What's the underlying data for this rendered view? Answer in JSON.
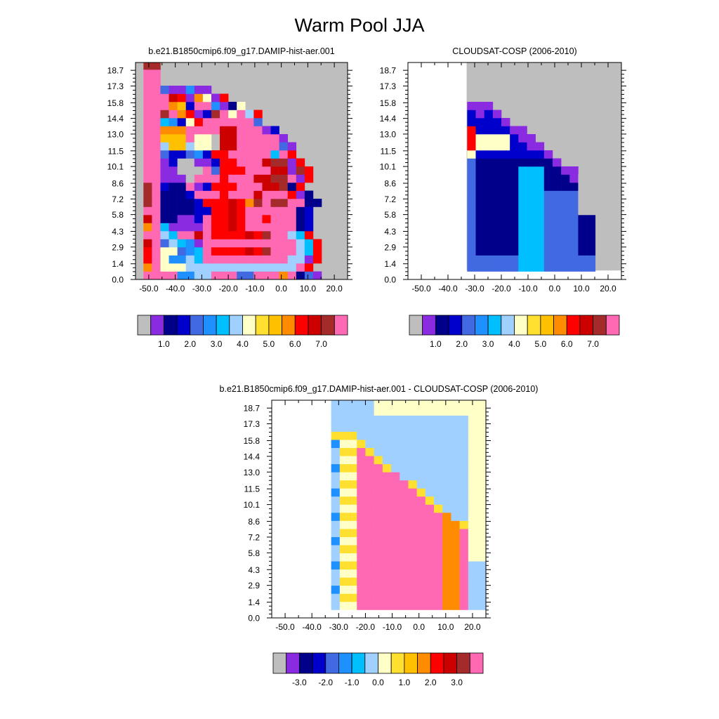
{
  "title": "Warm Pool JJA",
  "chart_data": [
    {
      "type": "heatmap",
      "title": "b.e21.B1850cmip6.f09_g17.DAMIP-hist-aer.001",
      "x_ticks": [
        "-50.0",
        "-40.0",
        "-30.0",
        "-20.0",
        "-10.0",
        "0.0",
        "10.0",
        "20.0"
      ],
      "y_ticks": [
        "0.0",
        "1.4",
        "2.9",
        "4.3",
        "5.8",
        "7.2",
        "8.6",
        "10.1",
        "11.5",
        "13.0",
        "14.4",
        "15.8",
        "17.3",
        "18.7"
      ],
      "xlim": [
        -55,
        25
      ],
      "ylim": [
        0,
        19.4
      ],
      "colorbar": {
        "colors": [
          "#bebebe",
          "#8a2be2",
          "#00008b",
          "#0000cd",
          "#4169e1",
          "#1e90ff",
          "#00bfff",
          "#a0d0ff",
          "#ffffc8",
          "#ffe030",
          "#ffc000",
          "#ff8c00",
          "#ff0000",
          "#cd0000",
          "#a52a2a",
          "#ff69b4"
        ],
        "labels": [
          "1.0",
          "2.0",
          "3.0",
          "4.0",
          "5.0",
          "6.0",
          "7.0"
        ]
      },
      "grid": {
        "x0": -52,
        "dx": 3.2,
        "y0": 0,
        "dy": 0.722,
        "rows": [
          "ppppffhhpppeeppplpceb",
          "lpiiihhhhhhhhhhhhhpm",
          "mpiffhgpppppppppphhbm",
          "mpiiefgpmmmmnmoppphgm",
          "npehgfbppppppppppphgm",
          "pphgppnpmmmmnmopphgm",
          "lpgbbbbpmmnmppppppcd",
          "npccbbdpmmnmppmpppcd",
          "ppccccddmmnmppppppcd",
          "opccccdmmmnmlopooppcc",
          "opcccdpppmpppnpppmbc",
          "opdccpbdmmmpppnnocm",
          "ppbbbapppmpppnnoopbm",
          "ppbbaaapemmmpppnnbom",
          "ppbdaabbdmmpppnoobm",
          "ppeddefdmmpppppgpm",
          "pphkkhiitnnpppppeb",
          "ppkkkpiitnnpppppb",
          "pplllppppnnpppbd",
          "ppgfdimppppppe",
          "ppoplmbdopiphm",
          "ppplkdppfbci",
          "pppnmblibm",
          "ppebbfbb",
          "pp",
          "pp",
          "oo",
          "ff"
        ]
      }
    },
    {
      "type": "heatmap",
      "title": "CLOUDSAT-COSP (2006-2010)",
      "x_ticks": [
        "-50.0",
        "-40.0",
        "-30.0",
        "-20.0",
        "-10.0",
        "0.0",
        "10.0",
        "20.0"
      ],
      "y_ticks": [
        "0.0",
        "1.4",
        "2.9",
        "4.3",
        "5.8",
        "7.2",
        "8.6",
        "10.1",
        "11.5",
        "13.0",
        "14.4",
        "15.8",
        "17.3",
        "18.7"
      ],
      "xlim": [
        -55,
        25
      ],
      "ylim": [
        0,
        19.4
      ],
      "colorbar": {
        "colors": [
          "#bebebe",
          "#8a2be2",
          "#00008b",
          "#0000cd",
          "#4169e1",
          "#1e90ff",
          "#00bfff",
          "#a0d0ff",
          "#ffffc8",
          "#ffe030",
          "#ffc000",
          "#ff8c00",
          "#ff0000",
          "#cd0000",
          "#a52a2a",
          "#ff69b4"
        ],
        "labels": [
          "1.0",
          "2.0",
          "3.0",
          "4.0",
          "5.0",
          "6.0",
          "7.0"
        ]
      }
    },
    {
      "type": "heatmap",
      "title": "b.e21.B1850cmip6.f09_g17.DAMIP-hist-aer.001 - CLOUDSAT-COSP (2006-2010)",
      "x_ticks": [
        "-50.0",
        "-40.0",
        "-30.0",
        "-20.0",
        "-10.0",
        "0.0",
        "10.0",
        "20.0"
      ],
      "y_ticks": [
        "0.0",
        "1.4",
        "2.9",
        "4.3",
        "5.8",
        "7.2",
        "8.6",
        "10.1",
        "11.5",
        "13.0",
        "14.4",
        "15.8",
        "17.3",
        "18.7"
      ],
      "xlim": [
        -55,
        25
      ],
      "ylim": [
        0,
        19.4
      ],
      "colorbar": {
        "colors": [
          "#bebebe",
          "#8a2be2",
          "#00008b",
          "#0000cd",
          "#4169e1",
          "#1e90ff",
          "#00bfff",
          "#a0d0ff",
          "#ffffc8",
          "#ffe030",
          "#ffc000",
          "#ff8c00",
          "#ff0000",
          "#cd0000",
          "#a52a2a",
          "#ff69b4"
        ],
        "labels": [
          "-3.0",
          "-2.0",
          "-1.0",
          "0.0",
          "1.0",
          "2.0",
          "3.0"
        ]
      }
    }
  ]
}
